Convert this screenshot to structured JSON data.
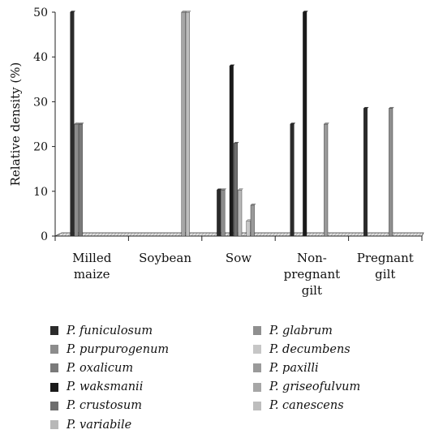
{
  "chart_data": {
    "type": "bar",
    "ylabel": "Relative density (%)",
    "xlabel": "",
    "title": "",
    "ylim": [
      0,
      50
    ],
    "yticks": [
      0,
      10,
      20,
      30,
      40,
      50
    ],
    "grid": false,
    "legend_position": "bottom",
    "categories": [
      [
        "Milled",
        "maize"
      ],
      [
        "Soybean"
      ],
      [
        "Sow"
      ],
      [
        "Non-",
        "pregnant",
        "gilt"
      ],
      [
        "Pregnant",
        "gilt"
      ]
    ],
    "series": [
      {
        "name": "P. funiculosum",
        "color": "#2b2b2b",
        "values": [
          50,
          0,
          10.3,
          25,
          28.5
        ]
      },
      {
        "name": "P. purpurogenum",
        "color": "#8c8c8c",
        "values": [
          25,
          0,
          10.3,
          0,
          0
        ]
      },
      {
        "name": "P. oxalicum",
        "color": "#7a7a7a",
        "values": [
          25,
          0,
          0,
          0,
          0
        ]
      },
      {
        "name": "P. waksmanii",
        "color": "#1a1a1a",
        "values": [
          0,
          0,
          38,
          50,
          0
        ]
      },
      {
        "name": "P. crustosum",
        "color": "#6e6e6e",
        "values": [
          0,
          0,
          20.7,
          0,
          0
        ]
      },
      {
        "name": "P. variabile",
        "color": "#b8b8b8",
        "values": [
          0,
          0,
          10.3,
          0,
          0
        ]
      },
      {
        "name": "P. glabrum",
        "color": "#8f8f8f",
        "values": [
          0,
          0,
          0,
          0,
          28.5
        ]
      },
      {
        "name": "P. decumbens",
        "color": "#c6c6c6",
        "values": [
          0,
          0,
          3.4,
          0,
          0
        ]
      },
      {
        "name": "P. paxilli",
        "color": "#9a9a9a",
        "values": [
          0,
          0,
          6.9,
          25,
          0
        ]
      },
      {
        "name": "P. griseofulvum",
        "color": "#a6a6a6",
        "values": [
          0,
          50,
          0,
          0,
          0
        ]
      },
      {
        "name": "P. canescens",
        "color": "#bdbdbd",
        "values": [
          0,
          50,
          0,
          0,
          0
        ]
      }
    ]
  }
}
